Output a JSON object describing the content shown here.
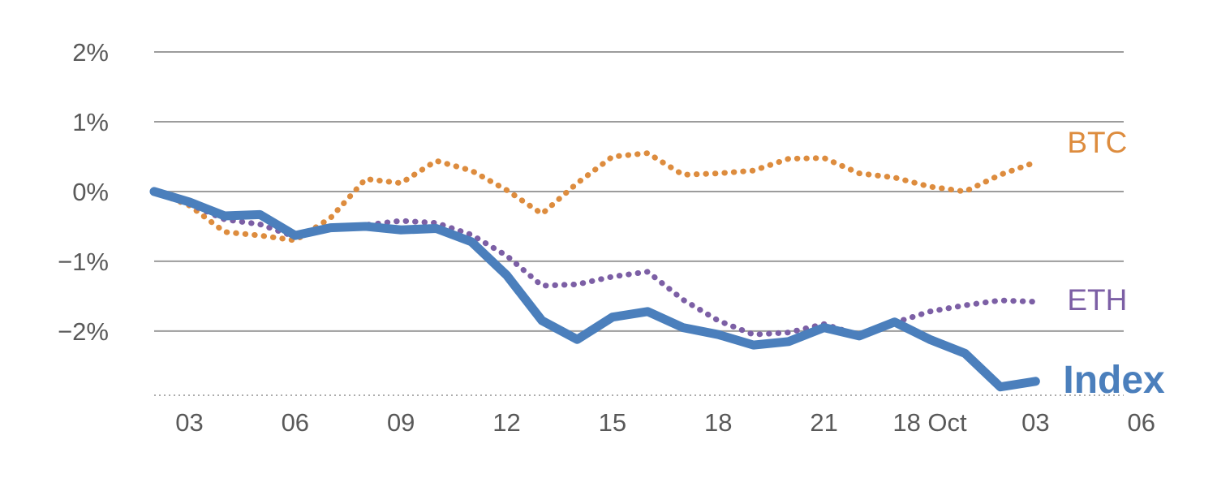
{
  "chart_data": {
    "type": "line",
    "title": "",
    "xlabel": "",
    "ylabel": "",
    "grid": "horizontal",
    "legend_position": "end-of-line-labels",
    "background": "#ffffff",
    "grid_color": "#9c9c9c",
    "axis_line_color": "#acacac",
    "tick_label_color": "#595959",
    "tick_font_size": 31,
    "xlim": [
      0,
      27.5
    ],
    "ylim": [
      -2.92,
      2.0
    ],
    "x": [
      0,
      1,
      2,
      3,
      4,
      5,
      6,
      7,
      8,
      9,
      10,
      11,
      12,
      13,
      14,
      15,
      16,
      17,
      18,
      19,
      20,
      21,
      22,
      23,
      24,
      25
    ],
    "x_ticks": [
      {
        "pos": 1,
        "label": "03"
      },
      {
        "pos": 4,
        "label": "06"
      },
      {
        "pos": 7,
        "label": "09"
      },
      {
        "pos": 10,
        "label": "12"
      },
      {
        "pos": 13,
        "label": "15"
      },
      {
        "pos": 16,
        "label": "18"
      },
      {
        "pos": 19,
        "label": "21"
      },
      {
        "pos": 22,
        "label": "18 Oct"
      },
      {
        "pos": 25,
        "label": "03"
      },
      {
        "pos": 28,
        "label": "06"
      }
    ],
    "y_ticks": [
      {
        "value": 2,
        "label": "2%"
      },
      {
        "value": 1,
        "label": "1%"
      },
      {
        "value": 0,
        "label": "0%"
      },
      {
        "value": -1,
        "label": "−1%"
      },
      {
        "value": -2,
        "label": "−2%"
      }
    ],
    "series": [
      {
        "name": "BTC",
        "color": "#dd8c3e",
        "style": "dotted",
        "width": 7,
        "label_size": 37,
        "bold": false,
        "label_dx": 39,
        "label_dy": -12,
        "values": [
          0.0,
          -0.2,
          -0.58,
          -0.63,
          -0.7,
          -0.38,
          0.18,
          0.12,
          0.44,
          0.3,
          0.02,
          -0.32,
          0.12,
          0.5,
          0.55,
          0.24,
          0.26,
          0.3,
          0.47,
          0.48,
          0.26,
          0.2,
          0.07,
          0.0,
          0.24,
          0.42
        ]
      },
      {
        "name": "ETH",
        "color": "#7c5fa5",
        "style": "dotted",
        "width": 7,
        "label_size": 37,
        "bold": false,
        "label_dx": 39,
        "label_dy": 10,
        "values": [
          0.0,
          -0.18,
          -0.4,
          -0.47,
          -0.65,
          -0.5,
          -0.48,
          -0.42,
          -0.45,
          -0.62,
          -0.92,
          -1.35,
          -1.33,
          -1.22,
          -1.15,
          -1.55,
          -1.85,
          -2.05,
          -2.02,
          -1.9,
          -2.06,
          -1.88,
          -1.72,
          -1.63,
          -1.56,
          -1.58
        ]
      },
      {
        "name": "Index",
        "color": "#4b7fbc",
        "style": "solid",
        "width": 11,
        "label_size": 48,
        "bold": true,
        "label_dx": 34,
        "label_dy": 14,
        "values": [
          0.0,
          -0.15,
          -0.35,
          -0.33,
          -0.63,
          -0.52,
          -0.5,
          -0.55,
          -0.53,
          -0.72,
          -1.2,
          -1.85,
          -2.12,
          -1.8,
          -1.72,
          -1.95,
          -2.05,
          -2.2,
          -2.15,
          -1.95,
          -2.07,
          -1.87,
          -2.12,
          -2.32,
          -2.8,
          -2.72
        ]
      }
    ]
  }
}
